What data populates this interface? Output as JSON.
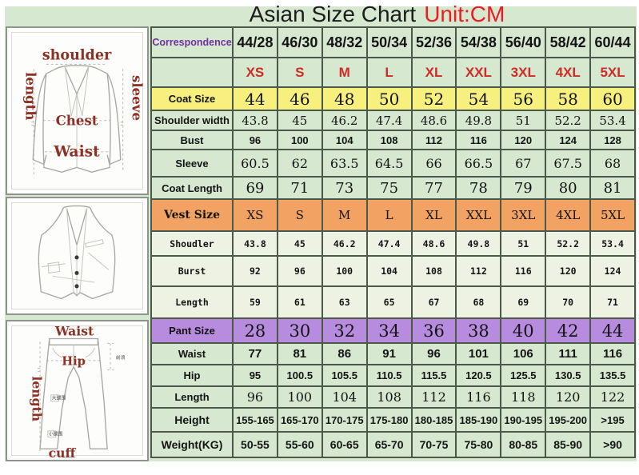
{
  "title": {
    "main": "Asian Size Chart",
    "unit": "Unit:CM"
  },
  "colors": {
    "panel_green": "#d6e8cf",
    "row_yellow": "#f7ef7e",
    "row_orange": "#f2a263",
    "row_purple": "#b78bde",
    "vest_row_light": "#edf2e3",
    "size_text_red": "#cf2b26",
    "title_unit_red": "#ed1c24",
    "correspondence_purple": "#7030a0",
    "diagram_label_maroon": "#8d3126"
  },
  "diagrams": {
    "jacket": {
      "labels": {
        "top": "shoulder",
        "left": "length",
        "right": "sleeve",
        "chest": "Chest",
        "waist": "Waist"
      }
    },
    "pants": {
      "labels": {
        "top": "Waist",
        "left": "length",
        "hip": "Hip",
        "bottom": "cuff"
      },
      "small_labels": [
        "前浪",
        "大腿围",
        "小腿围"
      ]
    }
  },
  "chart_data": {
    "type": "table",
    "title": "Asian Size Chart",
    "unit": "Unit:CM",
    "correspondence_label": "Correspondence",
    "columns": [
      "44/28",
      "46/30",
      "48/32",
      "50/34",
      "52/36",
      "54/38",
      "56/40",
      "58/42",
      "60/44"
    ],
    "sizes": [
      "XS",
      "S",
      "M",
      "L",
      "XL",
      "XXL",
      "3XL",
      "4XL",
      "5XL"
    ],
    "rows": [
      {
        "label": "Coat Size",
        "values": [
          "44",
          "46",
          "48",
          "50",
          "52",
          "54",
          "56",
          "58",
          "60"
        ]
      },
      {
        "label": "Shoulder width",
        "values": [
          "43.8",
          "45",
          "46.2",
          "47.4",
          "48.6",
          "49.8",
          "51",
          "52.2",
          "53.4"
        ]
      },
      {
        "label": "Bust",
        "values": [
          "96",
          "100",
          "104",
          "108",
          "112",
          "116",
          "120",
          "124",
          "128"
        ]
      },
      {
        "label": "Sleeve",
        "values": [
          "60.5",
          "62",
          "63.5",
          "64.5",
          "66",
          "66.5",
          "67",
          "67.5",
          "68"
        ]
      },
      {
        "label": "Coat Length",
        "values": [
          "69",
          "71",
          "73",
          "75",
          "77",
          "78",
          "79",
          "80",
          "81"
        ]
      },
      {
        "label": "Vest Size",
        "values": [
          "XS",
          "S",
          "M",
          "L",
          "XL",
          "XXL",
          "3XL",
          "4XL",
          "5XL"
        ]
      },
      {
        "label": "Shoudler",
        "values": [
          "43.8",
          "45",
          "46.2",
          "47.4",
          "48.6",
          "49.8",
          "51",
          "52.2",
          "53.4"
        ]
      },
      {
        "label": "Burst",
        "values": [
          "92",
          "96",
          "100",
          "104",
          "108",
          "112",
          "116",
          "120",
          "124"
        ]
      },
      {
        "label": "Length",
        "values": [
          "59",
          "61",
          "63",
          "65",
          "67",
          "68",
          "69",
          "70",
          "71"
        ]
      },
      {
        "label": "Pant Size",
        "values": [
          "28",
          "30",
          "32",
          "34",
          "36",
          "38",
          "40",
          "42",
          "44"
        ]
      },
      {
        "label": "Waist",
        "values": [
          "77",
          "81",
          "86",
          "91",
          "96",
          "101",
          "106",
          "111",
          "116"
        ]
      },
      {
        "label": "Hip",
        "values": [
          "95",
          "100.5",
          "105.5",
          "110.5",
          "115.5",
          "120.5",
          "125.5",
          "130.5",
          "135.5"
        ]
      },
      {
        "label": "Length",
        "values": [
          "96",
          "100",
          "104",
          "108",
          "112",
          "116",
          "118",
          "120",
          "122"
        ]
      },
      {
        "label": "Height",
        "values": [
          "155-165",
          "165-170",
          "170-175",
          "175-180",
          "180-185",
          "185-190",
          "190-195",
          "195-200",
          ">195"
        ]
      },
      {
        "label": "Weight(KG)",
        "values": [
          "50-55",
          "55-60",
          "60-65",
          "65-70",
          "70-75",
          "75-80",
          "80-85",
          "85-90",
          ">90"
        ]
      }
    ]
  }
}
